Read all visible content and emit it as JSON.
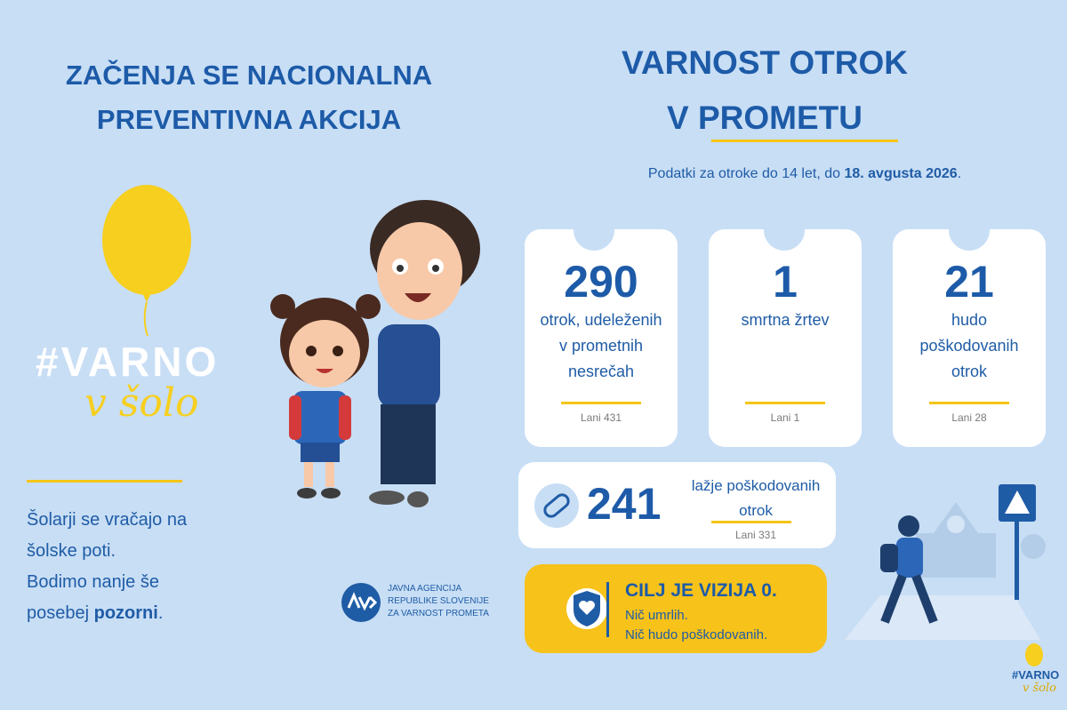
{
  "left": {
    "title_lines": [
      "ZAČENJA SE NACIONALNA",
      "PREVENTIVNA AKCIJA"
    ],
    "logo": {
      "hashtag": "#VARNO",
      "tagline": "v šolo"
    },
    "body_lines": [
      "Šolarji se vračajo na",
      "šolske poti.",
      "Bodimo nanje še"
    ],
    "body_last": {
      "before": "posebej",
      "bold": "pozorni",
      "after": "."
    },
    "agency_lines": [
      "JAVNA AGENCIJA",
      "REPUBLIKE SLOVENIJE",
      "ZA VARNOST PROMETA"
    ]
  },
  "right": {
    "title_lines": [
      "VARNOST OTROK",
      "V PROMETU"
    ],
    "subtitle": {
      "before": "Podatki za otroke do 14 let, do",
      "bold": "18. avgusta 2026",
      "after": "."
    },
    "cards": [
      {
        "number": "290",
        "label_lines": [
          "otrok, udeleženih",
          "v prometnih",
          "nesrečah"
        ],
        "previous": "Lani 431"
      },
      {
        "number": "1",
        "label_lines": [
          "smrtna žrtev"
        ],
        "previous": "Lani 1"
      },
      {
        "number": "21",
        "label_lines": [
          "hudo",
          "poškodovanih",
          "otrok"
        ],
        "previous": "Lani 28"
      }
    ],
    "wide_card": {
      "number": "241",
      "label_lines": [
        "lažje poškodovanih",
        "otrok"
      ],
      "previous": "Lani 331"
    },
    "vision": {
      "title": "CILJ JE VIZIJA 0.",
      "lines": [
        "Nič umrlih.",
        "Nič hudo poškodovanih."
      ]
    },
    "corner_logo": {
      "hashtag": "#VARNO",
      "tagline": "v šolo"
    }
  }
}
